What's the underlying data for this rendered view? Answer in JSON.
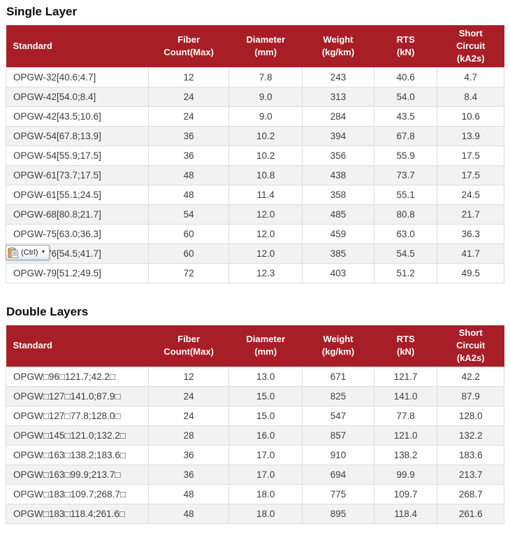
{
  "colors": {
    "header_bg": "#A71E26",
    "header_text": "#FFFFFF",
    "row_alt_bg": "#F2F2F2",
    "cell_border": "#DCDCDC",
    "cell_text": "#3D3D3D",
    "title_text": "#0A0A0A"
  },
  "tables": [
    {
      "title": "Single Layer",
      "headers": [
        "Standard",
        "Fiber\nCount(Max)",
        "Diameter\n(mm)",
        "Weight\n(kg/km)",
        "RTS\n(kN)",
        "Short\nCircuit\n(kA2s)"
      ],
      "header_keys": [
        "standard",
        "fiber-count",
        "diameter",
        "weight",
        "rts",
        "short-circuit"
      ],
      "rows": [
        [
          "OPGW-32[40.6;4.7]",
          "12",
          "7.8",
          "243",
          "40.6",
          "4.7"
        ],
        [
          "OPGW-42[54.0;8.4]",
          "24",
          "9.0",
          "313",
          "54.0",
          "8.4"
        ],
        [
          "OPGW-42[43.5;10.6]",
          "24",
          "9.0",
          "284",
          "43.5",
          "10.6"
        ],
        [
          "OPGW-54[67.8;13.9]",
          "36",
          "10.2",
          "394",
          "67.8",
          "13.9"
        ],
        [
          "OPGW-54[55.9;17.5]",
          "36",
          "10.2",
          "356",
          "55.9",
          "17.5"
        ],
        [
          "OPGW-61[73.7;17.5]",
          "48",
          "10.8",
          "438",
          "73.7",
          "17.5"
        ],
        [
          "OPGW-61[55.1;24.5]",
          "48",
          "11.4",
          "358",
          "55.1",
          "24.5"
        ],
        [
          "OPGW-68[80.8;21.7]",
          "54",
          "12.0",
          "485",
          "80.8",
          "21.7"
        ],
        [
          "OPGW-75[63.0;36.3]",
          "60",
          "12.0",
          "459",
          "63.0",
          "36.3"
        ],
        [
          "OPGW-76[54.5;41.7]",
          "60",
          "12.0",
          "385",
          "54.5",
          "41.7"
        ],
        [
          "OPGW-79[51.2;49.5]",
          "72",
          "12.3",
          "403",
          "51.2",
          "49.5"
        ]
      ]
    },
    {
      "title": "Double Layers",
      "headers": [
        "Standard",
        "Fiber\nCount(Max)",
        "Diameter\n(mm)",
        "Weight\n(kg/km)",
        "RTS\n(kN)",
        "Short\nCircuit\n(kA2s)"
      ],
      "header_keys": [
        "standard",
        "fiber-count",
        "diameter",
        "weight",
        "rts",
        "short-circuit"
      ],
      "rows": [
        [
          "OPGW□96□121.7;42.2□",
          "12",
          "13.0",
          "671",
          "121.7",
          "42.2"
        ],
        [
          "OPGW□127□141.0;87.9□",
          "24",
          "15.0",
          "825",
          "141.0",
          "87.9"
        ],
        [
          "OPGW□127□77.8;128.0□",
          "24",
          "15.0",
          "547",
          "77.8",
          "128.0"
        ],
        [
          "OPGW□145□121.0;132.2□",
          "28",
          "16.0",
          "857",
          "121.0",
          "132.2"
        ],
        [
          "OPGW□163□138.2;183.6□",
          "36",
          "17.0",
          "910",
          "138.2",
          "183.6"
        ],
        [
          "OPGW□163□99.9;213.7□",
          "36",
          "17.0",
          "694",
          "99.9",
          "213.7"
        ],
        [
          "OPGW□183□109.7;268.7□",
          "48",
          "18.0",
          "775",
          "109.7",
          "268.7"
        ],
        [
          "OPGW□183□118.4;261.6□",
          "48",
          "18.0",
          "895",
          "118.4",
          "261.6"
        ]
      ]
    }
  ],
  "paste_widget": {
    "label": "(Ctrl)",
    "dropdown_glyph": "▼",
    "icon": "clipboard-paste-icon"
  }
}
